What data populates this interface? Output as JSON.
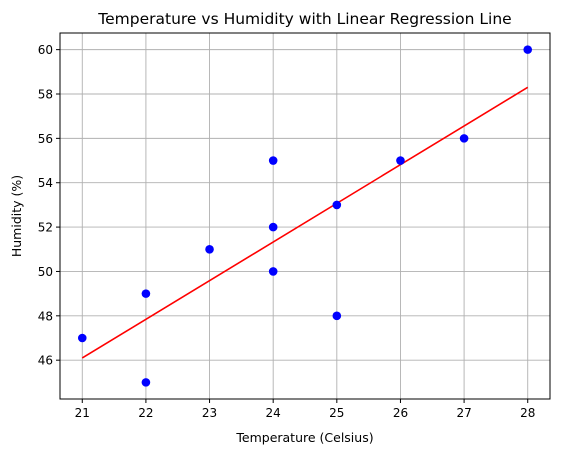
{
  "chart_data": {
    "type": "scatter",
    "title": "Temperature vs Humidity with Linear Regression Line",
    "xlabel": "Temperature (Celsius)",
    "ylabel": "Humidity (%)",
    "xlim": [
      20.65,
      28.35
    ],
    "ylim": [
      44.25,
      60.75
    ],
    "xticks": [
      21,
      22,
      23,
      24,
      25,
      26,
      27,
      28
    ],
    "yticks": [
      46,
      48,
      50,
      52,
      54,
      56,
      58,
      60
    ],
    "grid": true,
    "series": [
      {
        "type": "scatter",
        "color": "#0000ff",
        "points": [
          {
            "x": 21,
            "y": 47
          },
          {
            "x": 22,
            "y": 45
          },
          {
            "x": 22,
            "y": 49
          },
          {
            "x": 23,
            "y": 51
          },
          {
            "x": 24,
            "y": 50
          },
          {
            "x": 24,
            "y": 52
          },
          {
            "x": 24,
            "y": 55
          },
          {
            "x": 25,
            "y": 48
          },
          {
            "x": 25,
            "y": 53
          },
          {
            "x": 26,
            "y": 55
          },
          {
            "x": 27,
            "y": 56
          },
          {
            "x": 28,
            "y": 60
          }
        ]
      },
      {
        "type": "line",
        "color": "#ff0000",
        "points": [
          {
            "x": 21,
            "y": 46.1
          },
          {
            "x": 28,
            "y": 58.3
          }
        ]
      }
    ]
  }
}
